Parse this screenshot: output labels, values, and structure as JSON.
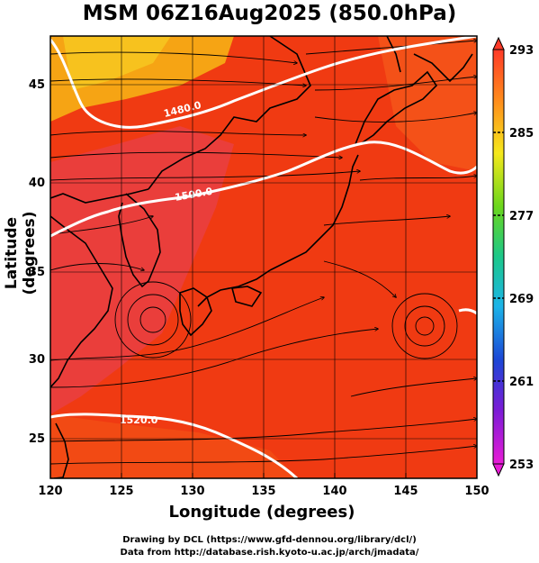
{
  "title": "MSM 06Z16Aug2025 (850.0hPa)",
  "xaxis": {
    "label": "Longitude (degrees)",
    "ticks": [
      "120",
      "125",
      "130",
      "135",
      "140",
      "145",
      "150"
    ],
    "range": [
      120,
      150
    ]
  },
  "yaxis": {
    "label": "Latitude  (degrees)",
    "ticks": [
      "25",
      "30",
      "35",
      "40",
      "45"
    ],
    "range": [
      22.5,
      47.5
    ]
  },
  "colorbar": {
    "ticks": [
      "293",
      "285",
      "277",
      "269",
      "261",
      "253"
    ],
    "range": [
      253,
      293
    ]
  },
  "contours": [
    {
      "label": "1480.0"
    },
    {
      "label": "1500.0"
    },
    {
      "label": "1520.0"
    }
  ],
  "credits": {
    "line1": "Drawing by DCL (https://www.gfd-dennou.org/library/dcl/)",
    "line2": "Data from http://database.rish.kyoto-u.ac.jp/arch/jmadata/"
  },
  "colors": {
    "warm": "#f03a12",
    "hot": "#e8404a",
    "cool": "#f6a414",
    "contour": "#ffffff",
    "coast": "#000000",
    "stream": "#000000"
  }
}
